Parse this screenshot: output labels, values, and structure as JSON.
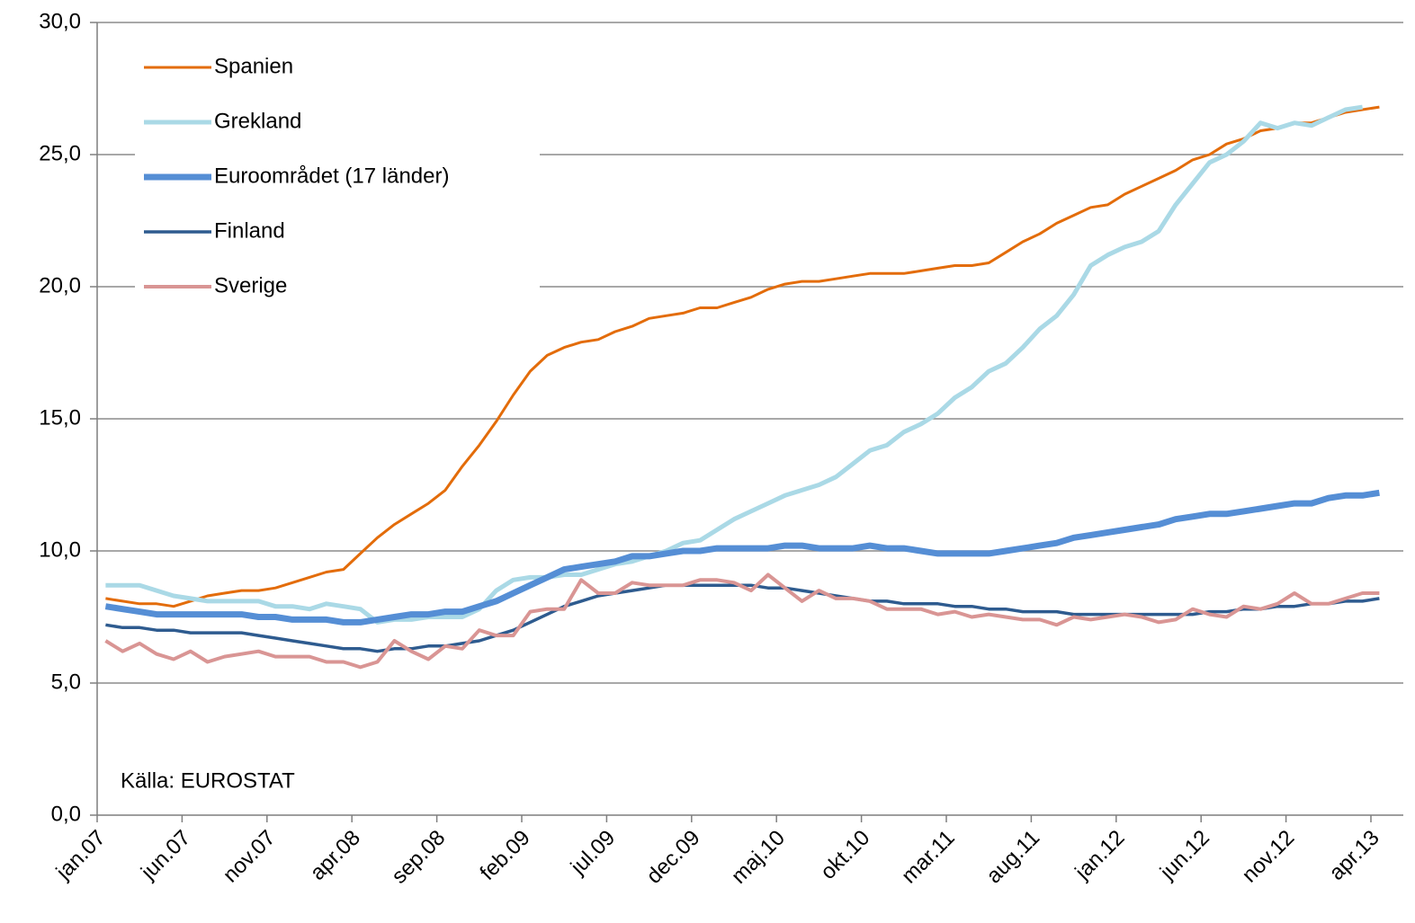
{
  "chart_data": {
    "type": "line",
    "categories": [
      "jan.07",
      null,
      null,
      null,
      null,
      "jun.07",
      null,
      null,
      null,
      null,
      "nov.07",
      null,
      null,
      null,
      null,
      "apr.08",
      null,
      null,
      null,
      null,
      "sep.08",
      null,
      null,
      null,
      null,
      "feb.09",
      null,
      null,
      null,
      null,
      "jul.09",
      null,
      null,
      null,
      null,
      "dec.09",
      null,
      null,
      null,
      null,
      "maj.10",
      null,
      null,
      null,
      null,
      "okt.10",
      null,
      null,
      null,
      null,
      "mar.11",
      null,
      null,
      null,
      null,
      "aug.11",
      null,
      null,
      null,
      null,
      "jan.12",
      null,
      null,
      null,
      null,
      "jun.12",
      null,
      null,
      null,
      null,
      "nov.12",
      null,
      null,
      null,
      null,
      "apr.13"
    ],
    "series": [
      {
        "name": "Spanien",
        "color": "#e36c0a",
        "values": [
          8.2,
          8.1,
          8.0,
          8.0,
          7.9,
          8.1,
          8.3,
          8.4,
          8.5,
          8.5,
          8.6,
          8.8,
          9.0,
          9.2,
          9.3,
          9.9,
          10.5,
          11.0,
          11.4,
          11.8,
          12.3,
          13.2,
          14.0,
          14.9,
          15.9,
          16.8,
          17.4,
          17.7,
          17.9,
          18.0,
          18.3,
          18.5,
          18.8,
          18.9,
          19.0,
          19.2,
          19.2,
          19.4,
          19.6,
          19.9,
          20.1,
          20.2,
          20.2,
          20.3,
          20.4,
          20.5,
          20.5,
          20.5,
          20.6,
          20.7,
          20.8,
          20.8,
          20.9,
          21.3,
          21.7,
          22.0,
          22.4,
          22.7,
          23.0,
          23.1,
          23.5,
          23.8,
          24.1,
          24.4,
          24.8,
          25.0,
          25.4,
          25.6,
          25.9,
          26.0,
          26.2,
          26.2,
          26.4,
          26.6,
          26.7,
          26.8
        ]
      },
      {
        "name": "Grekland",
        "color": "#aad9e6",
        "values": [
          8.7,
          8.7,
          8.7,
          8.5,
          8.3,
          8.2,
          8.1,
          8.1,
          8.1,
          8.1,
          7.9,
          7.9,
          7.8,
          8.0,
          7.9,
          7.8,
          7.3,
          7.4,
          7.4,
          7.5,
          7.5,
          7.5,
          7.8,
          8.5,
          8.9,
          9.0,
          9.0,
          9.1,
          9.1,
          9.3,
          9.5,
          9.6,
          9.8,
          10.0,
          10.3,
          10.4,
          10.8,
          11.2,
          11.5,
          11.8,
          12.1,
          12.3,
          12.5,
          12.8,
          13.3,
          13.8,
          14.0,
          14.5,
          14.8,
          15.2,
          15.8,
          16.2,
          16.8,
          17.1,
          17.7,
          18.4,
          18.9,
          19.7,
          20.8,
          21.2,
          21.5,
          21.7,
          22.1,
          23.1,
          23.9,
          24.7,
          25.0,
          25.5,
          26.2,
          26.0,
          26.2,
          26.1,
          26.4,
          26.7,
          26.8,
          null
        ]
      },
      {
        "name": "Euroområdet (17 länder)",
        "color": "#558ed5",
        "values": [
          7.9,
          7.8,
          7.7,
          7.6,
          7.6,
          7.6,
          7.6,
          7.6,
          7.6,
          7.5,
          7.5,
          7.4,
          7.4,
          7.4,
          7.3,
          7.3,
          7.4,
          7.5,
          7.6,
          7.6,
          7.7,
          7.7,
          7.9,
          8.1,
          8.4,
          8.7,
          9.0,
          9.3,
          9.4,
          9.5,
          9.6,
          9.8,
          9.8,
          9.9,
          10.0,
          10.0,
          10.1,
          10.1,
          10.1,
          10.1,
          10.2,
          10.2,
          10.1,
          10.1,
          10.1,
          10.2,
          10.1,
          10.1,
          10.0,
          9.9,
          9.9,
          9.9,
          9.9,
          10.0,
          10.1,
          10.2,
          10.3,
          10.5,
          10.6,
          10.7,
          10.8,
          10.9,
          11.0,
          11.2,
          11.3,
          11.4,
          11.4,
          11.5,
          11.6,
          11.7,
          11.8,
          11.8,
          12.0,
          12.1,
          12.1,
          12.2
        ]
      },
      {
        "name": "Finland",
        "color": "#2e5b8f",
        "values": [
          7.2,
          7.1,
          7.1,
          7.0,
          7.0,
          6.9,
          6.9,
          6.9,
          6.9,
          6.8,
          6.7,
          6.6,
          6.5,
          6.4,
          6.3,
          6.3,
          6.2,
          6.3,
          6.3,
          6.4,
          6.4,
          6.5,
          6.6,
          6.8,
          7.0,
          7.3,
          7.6,
          7.9,
          8.1,
          8.3,
          8.4,
          8.5,
          8.6,
          8.7,
          8.7,
          8.7,
          8.7,
          8.7,
          8.7,
          8.6,
          8.6,
          8.5,
          8.4,
          8.3,
          8.2,
          8.1,
          8.1,
          8.0,
          8.0,
          8.0,
          7.9,
          7.9,
          7.8,
          7.8,
          7.7,
          7.7,
          7.7,
          7.6,
          7.6,
          7.6,
          7.6,
          7.6,
          7.6,
          7.6,
          7.6,
          7.7,
          7.7,
          7.8,
          7.8,
          7.9,
          7.9,
          8.0,
          8.0,
          8.1,
          8.1,
          8.2
        ]
      },
      {
        "name": "Sverige",
        "color": "#d99594",
        "values": [
          6.6,
          6.2,
          6.5,
          6.1,
          5.9,
          6.2,
          5.8,
          6.0,
          6.1,
          6.2,
          6.0,
          6.0,
          6.0,
          5.8,
          5.8,
          5.6,
          5.8,
          6.6,
          6.2,
          5.9,
          6.4,
          6.3,
          7.0,
          6.8,
          6.8,
          7.7,
          7.8,
          7.8,
          8.9,
          8.4,
          8.4,
          8.8,
          8.7,
          8.7,
          8.7,
          8.9,
          8.9,
          8.8,
          8.5,
          9.1,
          8.6,
          8.1,
          8.5,
          8.2,
          8.2,
          8.1,
          7.8,
          7.8,
          7.8,
          7.6,
          7.7,
          7.5,
          7.6,
          7.5,
          7.4,
          7.4,
          7.2,
          7.5,
          7.4,
          7.5,
          7.6,
          7.5,
          7.3,
          7.4,
          7.8,
          7.6,
          7.5,
          7.9,
          7.8,
          8.0,
          8.4,
          8.0,
          8.0,
          8.2,
          8.4,
          8.4
        ]
      }
    ],
    "ylim": [
      0,
      30
    ],
    "yticks": [
      {
        "value": 0,
        "label": "0,0"
      },
      {
        "value": 5,
        "label": "5,0"
      },
      {
        "value": 10,
        "label": "10,0"
      },
      {
        "value": 15,
        "label": "15,0"
      },
      {
        "value": 20,
        "label": "20,0"
      },
      {
        "value": 25,
        "label": "25,0"
      },
      {
        "value": 30,
        "label": "30,0"
      }
    ],
    "grid": true,
    "legend": "top-left",
    "annotation": "Källa: EUROSTAT"
  }
}
